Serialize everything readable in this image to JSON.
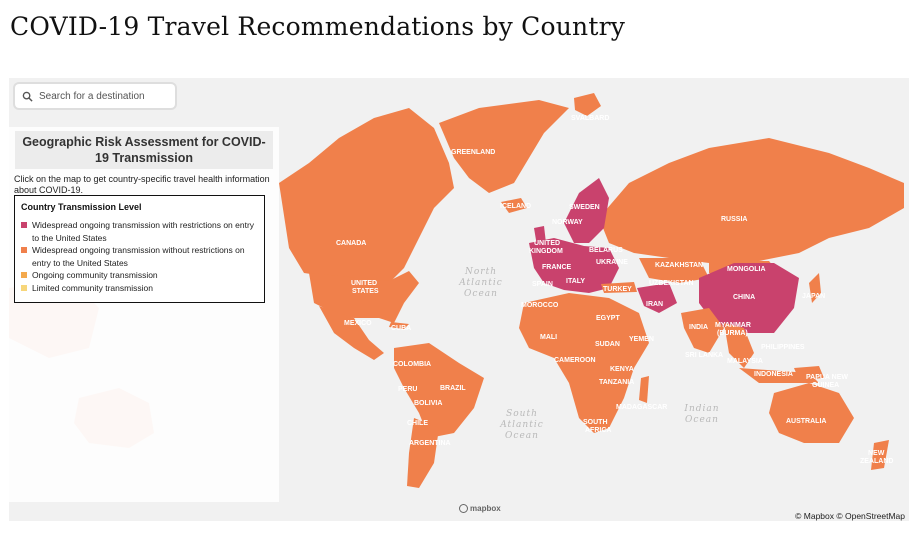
{
  "page": {
    "title": "COVID-19 Travel Recommendations by Country"
  },
  "search": {
    "placeholder": "Search for a destination",
    "icon": "search-icon"
  },
  "panel": {
    "title": "Geographic Risk Assessment for COVID-19 Transmission",
    "description": "Click on the map to get country-specific travel health information about COVID-19."
  },
  "legend": {
    "title": "Country Transmission Level",
    "items": [
      {
        "label": "Widespread ongoing transmission with restrictions on entry to the United States",
        "color": "#c9426d"
      },
      {
        "label": "Widespread ongoing transmission without restrictions on entry to the United States",
        "color": "#f0804b"
      },
      {
        "label": "Ongoing community transmission",
        "color": "#f4a94d"
      },
      {
        "label": "Limited community transmission",
        "color": "#f7d67a"
      }
    ]
  },
  "colors": {
    "ocean": "#f1f1f1",
    "widespread_restricted": "#c9426d",
    "widespread": "#f0804b"
  },
  "map": {
    "oceans": [
      "North Atlantic Ocean",
      "South Atlantic Ocean",
      "Indian Ocean"
    ],
    "countries": [
      "SVALBARD",
      "GREENLAND",
      "ICELAND",
      "CANADA",
      "UNITED STATES",
      "MEXICO",
      "CUBA",
      "RUSSIA",
      "SWEDEN",
      "NORWAY",
      "UNITED KINGDOM",
      "BELARUS",
      "FRANCE",
      "UKRAINE",
      "SPAIN",
      "ITALY",
      "TURKEY",
      "KAZAKHSTAN",
      "MONGOLIA",
      "UZBEKISTAN",
      "CHINA",
      "JAPAN",
      "IRAN",
      "MOROCCO",
      "EGYPT",
      "INDIA",
      "MYANMAR (BURMA)",
      "PHILIPPINES",
      "MALI",
      "SUDAN",
      "YEMEN",
      "SRI LANKA",
      "MALAYSIA",
      "COLOMBIA",
      "CAMEROON",
      "KENYA",
      "PAPUA NEW GUINEA",
      "INDONESIA",
      "PERU",
      "BRAZIL",
      "TANZANIA",
      "BOLIVIA",
      "MADAGASCAR",
      "AUSTRALIA",
      "CHILE",
      "SOUTH AFRICA",
      "ARGENTINA",
      "NEW ZEALAND"
    ]
  },
  "attribution": "© Mapbox © OpenStreetMap",
  "mapbox_logo": "mapbox"
}
